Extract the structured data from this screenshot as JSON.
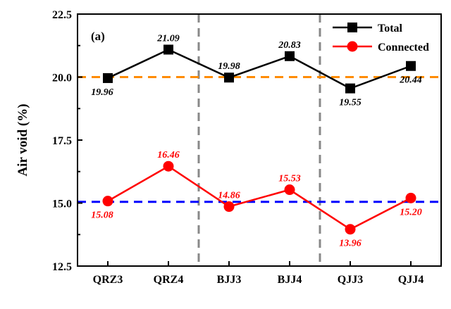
{
  "chart_data": {
    "type": "line",
    "panel_label": "(a)",
    "categories": [
      "QRZ3",
      "QRZ4",
      "BJJ3",
      "BJJ4",
      "QJJ3",
      "QJJ4"
    ],
    "ylabel": "Air void (%)",
    "xlabel": "",
    "ylim": [
      12.5,
      22.5
    ],
    "yticks": [
      "12.5",
      "15.0",
      "17.5",
      "20.0",
      "22.5"
    ],
    "grid": false,
    "legend_position": "top-right",
    "group_separators_after": [
      2,
      4
    ],
    "series": [
      {
        "name": "Total",
        "marker": "square",
        "color": "#000000",
        "values": [
          19.96,
          21.09,
          19.98,
          20.83,
          19.55,
          20.44
        ],
        "labels": [
          "19.96",
          "21.09",
          "19.98",
          "20.83",
          "19.55",
          "20.44"
        ],
        "label_color": "#000000",
        "reference_line": 20.0,
        "reference_color": "#ff8c00"
      },
      {
        "name": "Connected",
        "marker": "circle",
        "color": "#ff0000",
        "values": [
          15.08,
          16.46,
          14.86,
          15.53,
          13.96,
          15.2
        ],
        "labels": [
          "15.08",
          "16.46",
          "14.86",
          "15.53",
          "13.96",
          "15.20"
        ],
        "label_color": "#ff0000",
        "reference_line": 15.05,
        "reference_color": "#0000ff"
      }
    ]
  }
}
